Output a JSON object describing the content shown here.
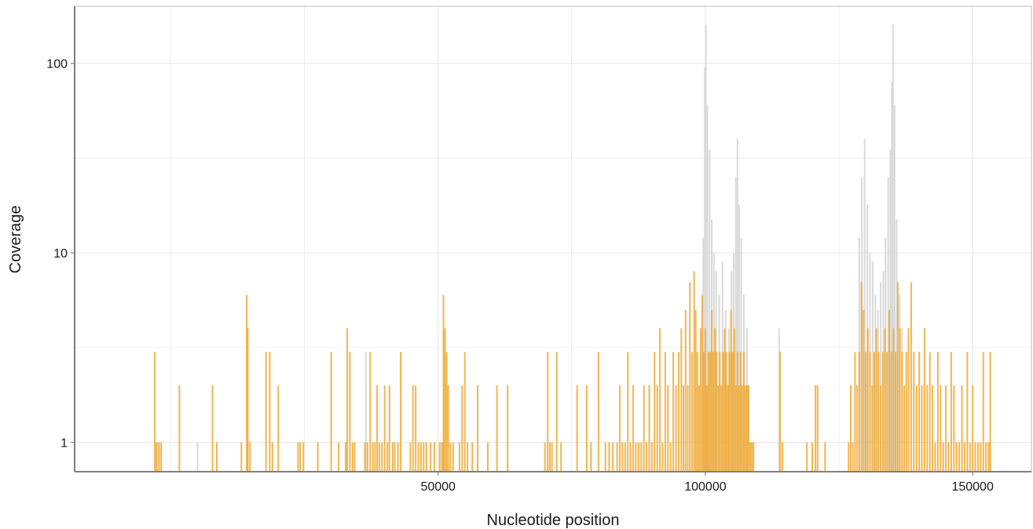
{
  "chart_data": {
    "type": "bar",
    "title": "",
    "xlabel": "Nucleotide position",
    "ylabel": "Coverage",
    "xlim": [
      -18000,
      161000
    ],
    "ylim": [
      0.7,
      200
    ],
    "y_scale": "log",
    "grid": true,
    "x_ticks": [
      50000,
      100000,
      150000
    ],
    "x_tick_labels": [
      "50000",
      "100000",
      "150000"
    ],
    "y_ticks": [
      1,
      10,
      100
    ],
    "y_tick_labels": [
      "1",
      "10",
      "100"
    ],
    "colors": {
      "primary": "#f0a830",
      "secondary": "#d9d9d9",
      "grid": "#e6e6e6",
      "frame": "#7f7f7f"
    },
    "series": [
      {
        "color": "grey",
        "points": [
          [
            -2500,
            1
          ],
          [
            5000,
            1
          ],
          [
            36500,
            3
          ],
          [
            51000,
            1
          ],
          [
            99600,
            12
          ],
          [
            99900,
            95
          ],
          [
            100100,
            160
          ],
          [
            100400,
            60
          ],
          [
            100800,
            35
          ],
          [
            101200,
            15
          ],
          [
            101600,
            10
          ],
          [
            102000,
            8
          ],
          [
            102600,
            6
          ],
          [
            103200,
            9
          ],
          [
            103800,
            5
          ],
          [
            104400,
            4
          ],
          [
            104900,
            8
          ],
          [
            105300,
            10
          ],
          [
            105700,
            25
          ],
          [
            106000,
            40
          ],
          [
            106300,
            18
          ],
          [
            106700,
            12
          ],
          [
            107200,
            6
          ],
          [
            107800,
            4
          ],
          [
            113800,
            4
          ],
          [
            128800,
            12
          ],
          [
            129300,
            25
          ],
          [
            129800,
            40
          ],
          [
            130300,
            18
          ],
          [
            130800,
            10
          ],
          [
            131300,
            9
          ],
          [
            131800,
            6
          ],
          [
            132300,
            5
          ],
          [
            132800,
            7
          ],
          [
            133300,
            8
          ],
          [
            133700,
            12
          ],
          [
            134200,
            25
          ],
          [
            134600,
            35
          ],
          [
            134900,
            80
          ],
          [
            135100,
            160
          ],
          [
            135400,
            60
          ],
          [
            135800,
            15
          ],
          [
            136300,
            6
          ],
          [
            136800,
            4
          ]
        ]
      },
      {
        "color": "orange",
        "points": [
          [
            -3000,
            3
          ],
          [
            -2700,
            1
          ],
          [
            -2200,
            1
          ],
          [
            -1800,
            1
          ],
          [
            1600,
            2
          ],
          [
            7800,
            2
          ],
          [
            8600,
            1
          ],
          [
            13200,
            1
          ],
          [
            14200,
            6
          ],
          [
            14400,
            4
          ],
          [
            14800,
            1
          ],
          [
            17800,
            3
          ],
          [
            18500,
            3
          ],
          [
            19000,
            1
          ],
          [
            20100,
            2
          ],
          [
            23800,
            1
          ],
          [
            24200,
            1
          ],
          [
            24800,
            1
          ],
          [
            27500,
            1
          ],
          [
            30000,
            3
          ],
          [
            31400,
            1
          ],
          [
            32700,
            1
          ],
          [
            33000,
            4
          ],
          [
            33500,
            3
          ],
          [
            34000,
            1
          ],
          [
            34400,
            1
          ],
          [
            36300,
            1
          ],
          [
            36800,
            1
          ],
          [
            37300,
            3
          ],
          [
            37800,
            1
          ],
          [
            38200,
            1
          ],
          [
            38600,
            2
          ],
          [
            39000,
            1
          ],
          [
            39500,
            1
          ],
          [
            40000,
            2
          ],
          [
            40500,
            1
          ],
          [
            40900,
            2
          ],
          [
            41500,
            1
          ],
          [
            41900,
            1
          ],
          [
            42500,
            1
          ],
          [
            43000,
            3
          ],
          [
            44800,
            1
          ],
          [
            45300,
            2
          ],
          [
            45800,
            2
          ],
          [
            46300,
            1
          ],
          [
            46800,
            1
          ],
          [
            47300,
            1
          ],
          [
            47800,
            1
          ],
          [
            48600,
            1
          ],
          [
            49300,
            1
          ],
          [
            50300,
            1
          ],
          [
            50700,
            1
          ],
          [
            51000,
            6
          ],
          [
            51300,
            4
          ],
          [
            51600,
            3
          ],
          [
            51900,
            2
          ],
          [
            52300,
            1
          ],
          [
            52800,
            1
          ],
          [
            54000,
            1
          ],
          [
            54500,
            2
          ],
          [
            55000,
            3
          ],
          [
            55500,
            1
          ],
          [
            56400,
            1
          ],
          [
            57400,
            2
          ],
          [
            59300,
            1
          ],
          [
            61000,
            2
          ],
          [
            63000,
            2
          ],
          [
            70000,
            1
          ],
          [
            70500,
            3
          ],
          [
            70900,
            1
          ],
          [
            71300,
            1
          ],
          [
            72200,
            3
          ],
          [
            73000,
            1
          ],
          [
            76000,
            2
          ],
          [
            77800,
            2
          ],
          [
            78600,
            1
          ],
          [
            80000,
            3
          ],
          [
            81300,
            1
          ],
          [
            82000,
            1
          ],
          [
            82700,
            1
          ],
          [
            83500,
            1
          ],
          [
            84000,
            2
          ],
          [
            84500,
            1
          ],
          [
            85000,
            1
          ],
          [
            85500,
            3
          ],
          [
            86000,
            1
          ],
          [
            86500,
            2
          ],
          [
            87000,
            1
          ],
          [
            87500,
            1
          ],
          [
            88000,
            1
          ],
          [
            88500,
            2
          ],
          [
            89000,
            1
          ],
          [
            89500,
            2
          ],
          [
            90000,
            1
          ],
          [
            90500,
            3
          ],
          [
            91000,
            2
          ],
          [
            91500,
            4
          ],
          [
            92000,
            1
          ],
          [
            92500,
            3
          ],
          [
            93000,
            2
          ],
          [
            93500,
            1
          ],
          [
            94000,
            3
          ],
          [
            94500,
            2
          ],
          [
            95000,
            3
          ],
          [
            95500,
            4
          ],
          [
            95900,
            2
          ],
          [
            96300,
            5
          ],
          [
            96700,
            2
          ],
          [
            97100,
            7
          ],
          [
            97500,
            3
          ],
          [
            97900,
            8
          ],
          [
            98200,
            5
          ],
          [
            98500,
            3
          ],
          [
            98800,
            2
          ],
          [
            99100,
            4
          ],
          [
            99400,
            6
          ],
          [
            99700,
            3
          ],
          [
            100000,
            4
          ],
          [
            100300,
            2
          ],
          [
            100600,
            3
          ],
          [
            100900,
            3
          ],
          [
            101200,
            5
          ],
          [
            101500,
            3
          ],
          [
            101800,
            4
          ],
          [
            102100,
            3
          ],
          [
            102400,
            2
          ],
          [
            102700,
            3
          ],
          [
            103000,
            2
          ],
          [
            103300,
            3
          ],
          [
            103600,
            4
          ],
          [
            103900,
            3
          ],
          [
            104200,
            2
          ],
          [
            104500,
            3
          ],
          [
            104800,
            5
          ],
          [
            105100,
            3
          ],
          [
            105400,
            4
          ],
          [
            105700,
            2
          ],
          [
            106000,
            3
          ],
          [
            106300,
            2
          ],
          [
            106600,
            3
          ],
          [
            106900,
            2
          ],
          [
            107200,
            3
          ],
          [
            107500,
            2
          ],
          [
            107800,
            2
          ],
          [
            108100,
            2
          ],
          [
            108400,
            1
          ],
          [
            108700,
            1
          ],
          [
            109000,
            1
          ],
          [
            114000,
            3
          ],
          [
            114400,
            1
          ],
          [
            119000,
            1
          ],
          [
            120000,
            1
          ],
          [
            120600,
            2
          ],
          [
            121000,
            2
          ],
          [
            122400,
            1
          ],
          [
            126800,
            1
          ],
          [
            127200,
            2
          ],
          [
            127600,
            1
          ],
          [
            128000,
            3
          ],
          [
            128400,
            2
          ],
          [
            128800,
            3
          ],
          [
            129200,
            7
          ],
          [
            129600,
            5
          ],
          [
            130000,
            3
          ],
          [
            130400,
            4
          ],
          [
            130800,
            3
          ],
          [
            131200,
            2
          ],
          [
            131600,
            3
          ],
          [
            132000,
            4
          ],
          [
            132400,
            3
          ],
          [
            132800,
            2
          ],
          [
            133200,
            3
          ],
          [
            133600,
            4
          ],
          [
            134000,
            3
          ],
          [
            134400,
            5
          ],
          [
            134800,
            3
          ],
          [
            135200,
            4
          ],
          [
            135600,
            3
          ],
          [
            136000,
            7
          ],
          [
            136400,
            4
          ],
          [
            136800,
            3
          ],
          [
            137200,
            2
          ],
          [
            137600,
            3
          ],
          [
            138000,
            4
          ],
          [
            138500,
            7
          ],
          [
            139000,
            3
          ],
          [
            139500,
            2
          ],
          [
            140000,
            3
          ],
          [
            140500,
            2
          ],
          [
            141000,
            4
          ],
          [
            141500,
            2
          ],
          [
            142000,
            3
          ],
          [
            142500,
            2
          ],
          [
            143000,
            1
          ],
          [
            143500,
            3
          ],
          [
            144000,
            2
          ],
          [
            144500,
            1
          ],
          [
            145000,
            2
          ],
          [
            145500,
            1
          ],
          [
            146000,
            3
          ],
          [
            146500,
            2
          ],
          [
            147000,
            1
          ],
          [
            147500,
            1
          ],
          [
            148000,
            2
          ],
          [
            148500,
            1
          ],
          [
            149000,
            3
          ],
          [
            149500,
            1
          ],
          [
            150000,
            2
          ],
          [
            150500,
            1
          ],
          [
            151000,
            1
          ],
          [
            151500,
            1
          ],
          [
            152000,
            3
          ],
          [
            152500,
            1
          ],
          [
            153000,
            1
          ],
          [
            153300,
            3
          ]
        ]
      }
    ]
  }
}
